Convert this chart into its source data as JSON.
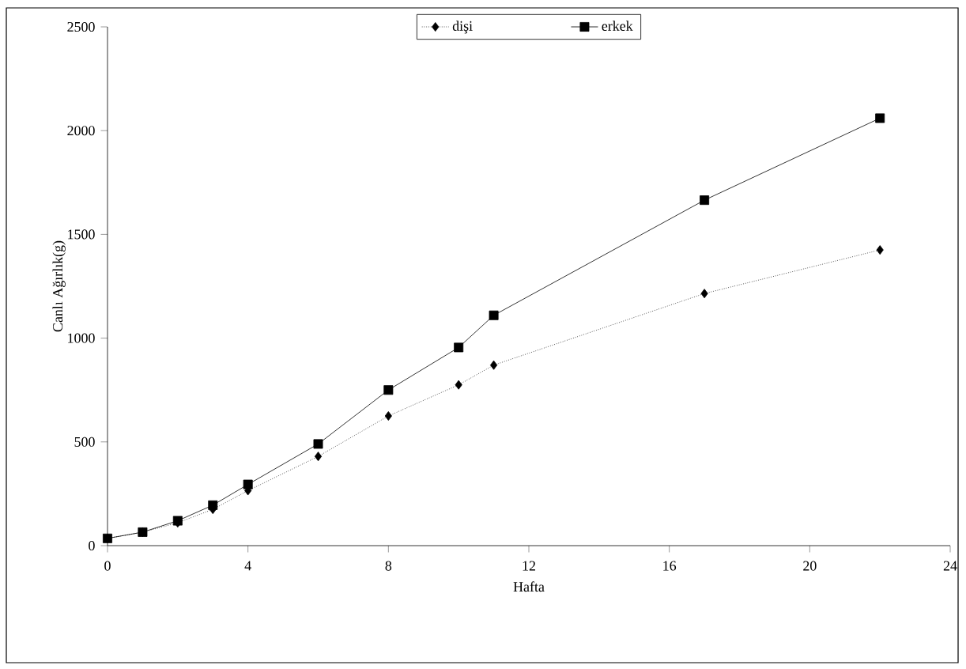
{
  "chart_data": {
    "type": "line",
    "xlabel": "Hafta",
    "ylabel": "Canlı Ağırlık(g)",
    "x": [
      0,
      1,
      2,
      3,
      4,
      6,
      8,
      10,
      11,
      17,
      22
    ],
    "series": [
      {
        "name": "dişi",
        "color": "#000000",
        "marker": "diamond",
        "line_style": "dotted",
        "values": [
          35,
          65,
          110,
          175,
          265,
          430,
          625,
          775,
          870,
          1215,
          1425
        ]
      },
      {
        "name": "erkek",
        "color": "#000000",
        "marker": "square",
        "line_style": "solid",
        "values": [
          35,
          65,
          120,
          195,
          295,
          490,
          750,
          955,
          1110,
          1665,
          2060
        ]
      }
    ],
    "xlim": [
      0,
      24
    ],
    "xticks": [
      0,
      4,
      8,
      12,
      16,
      20,
      24
    ],
    "ylim": [
      0,
      2500
    ],
    "yticks": [
      0,
      500,
      1000,
      1500,
      2000,
      2500
    ],
    "grid": false,
    "legend": "top"
  }
}
